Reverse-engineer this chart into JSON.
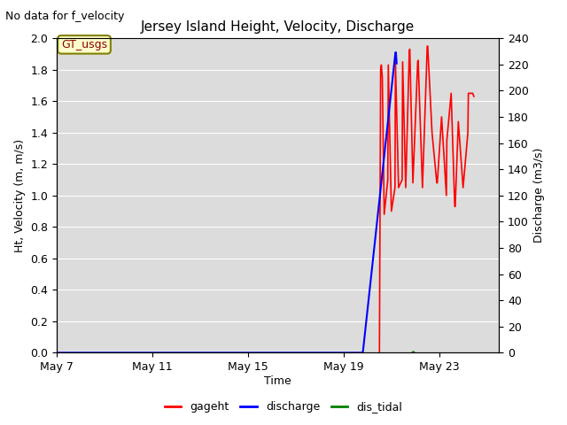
{
  "title": "Jersey Island Height, Velocity, Discharge",
  "subtitle": "No data for f_velocity",
  "ylabel_left": "Ht, Velocity (m, m/s)",
  "ylabel_right": "Discharge (m3/s)",
  "xlabel": "Time",
  "annotation": "GT_usgs",
  "ylim_left": [
    0.0,
    2.0
  ],
  "ylim_right": [
    0,
    240
  ],
  "yticks_left": [
    0.0,
    0.2,
    0.4,
    0.6,
    0.8,
    1.0,
    1.2,
    1.4,
    1.6,
    1.8,
    2.0
  ],
  "yticks_right": [
    0,
    20,
    40,
    60,
    80,
    100,
    120,
    140,
    160,
    180,
    200,
    220,
    240
  ],
  "bg_color": "#dcdcdc",
  "fig_color": "#ffffff",
  "legend_entries": [
    "gageht",
    "discharge",
    "dis_tidal"
  ],
  "legend_colors": [
    "red",
    "blue",
    "green"
  ],
  "gageht_x": [
    20.5,
    20.55,
    20.58,
    20.62,
    20.7,
    20.85,
    20.87,
    21.0,
    21.15,
    21.17,
    21.3,
    21.45,
    21.47,
    21.6,
    21.75,
    21.77,
    21.9,
    22.1,
    22.12,
    22.3,
    22.5,
    22.52,
    22.7,
    22.9,
    22.92,
    23.1,
    23.3,
    23.32,
    23.5,
    23.65,
    23.67,
    23.8,
    24.0,
    24.2,
    24.22,
    24.4,
    24.45
  ],
  "gageht_y": [
    0.0,
    1.8,
    1.83,
    1.75,
    0.88,
    1.1,
    1.83,
    0.9,
    1.05,
    1.85,
    1.05,
    1.1,
    1.85,
    1.05,
    1.92,
    1.93,
    1.08,
    1.85,
    1.86,
    1.05,
    1.95,
    1.95,
    1.4,
    1.08,
    1.08,
    1.5,
    1.0,
    1.35,
    1.65,
    0.93,
    0.93,
    1.47,
    1.05,
    1.4,
    1.65,
    1.65,
    1.63
  ],
  "discharge_x": [
    7.0,
    19.8,
    19.82,
    21.17,
    21.19,
    21.22
  ],
  "discharge_y": [
    0.0,
    0.0,
    0.02,
    1.91,
    1.91,
    1.84
  ],
  "dis_tidal_x": [
    21.9
  ],
  "dis_tidal_y": [
    0.005
  ],
  "xstart": 7,
  "xend": 25.5,
  "xtick_positions": [
    7,
    11,
    15,
    19,
    23
  ],
  "xtick_labels": [
    "May 7",
    "May 11",
    "May 15",
    "May 19",
    "May 23"
  ]
}
